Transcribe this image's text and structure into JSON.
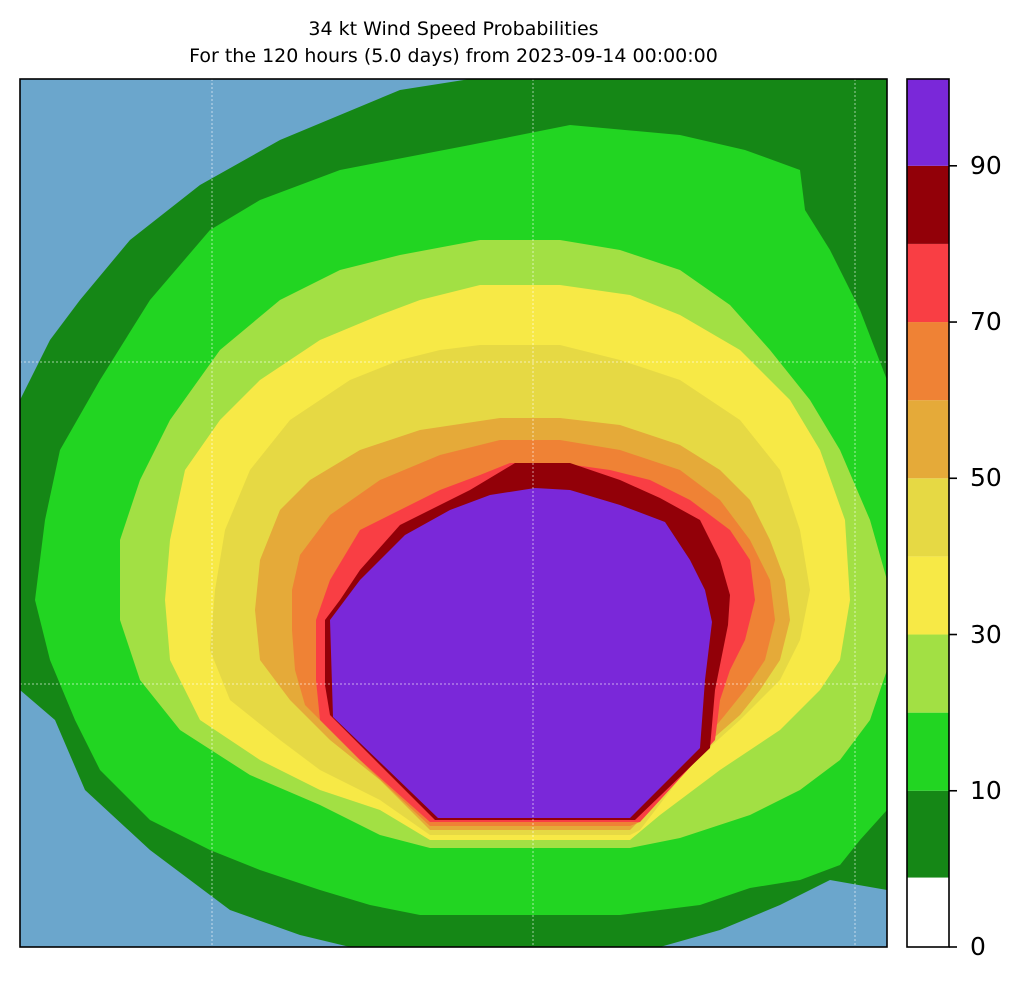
{
  "title": {
    "line1": "34 kt Wind Speed Probabilities",
    "line2": "For the 120 hours (5.0 days) from 2023-09-14 00:00:00"
  },
  "colors": {
    "ocean": "#6ba6cc",
    "band_0_10": "#ffffff",
    "band_5_10": "#158716",
    "band_10_20": "#22d522",
    "band_20_30": "#a2e044",
    "band_30_40": "#f7e946",
    "band_40_50": "#e6d944",
    "band_50_60": "#e5aa39",
    "band_60_70": "#ef8235",
    "band_70_80": "#f93e44",
    "band_80_90": "#920008",
    "band_90_100": "#7a28d9"
  },
  "colorbar": {
    "ticks": [
      "0",
      "10",
      "30",
      "50",
      "70",
      "90"
    ],
    "tick_values": [
      0,
      10,
      30,
      50,
      70,
      90
    ],
    "min": 0,
    "max": 100,
    "levels": [
      0,
      5,
      10,
      20,
      30,
      40,
      50,
      60,
      70,
      80,
      90,
      100
    ]
  }
}
